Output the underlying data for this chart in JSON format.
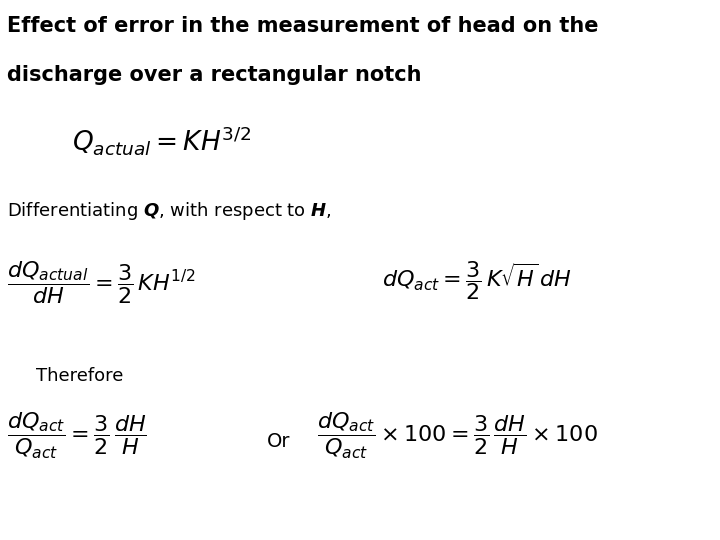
{
  "title_line1": "Effect of error in the measurement of head on the",
  "title_line2": "discharge over a rectangular notch",
  "bg_color": "#ffffff",
  "text_color": "#000000",
  "title_fontsize": 15,
  "body_fontsize": 13,
  "eq_fontsize": 16
}
